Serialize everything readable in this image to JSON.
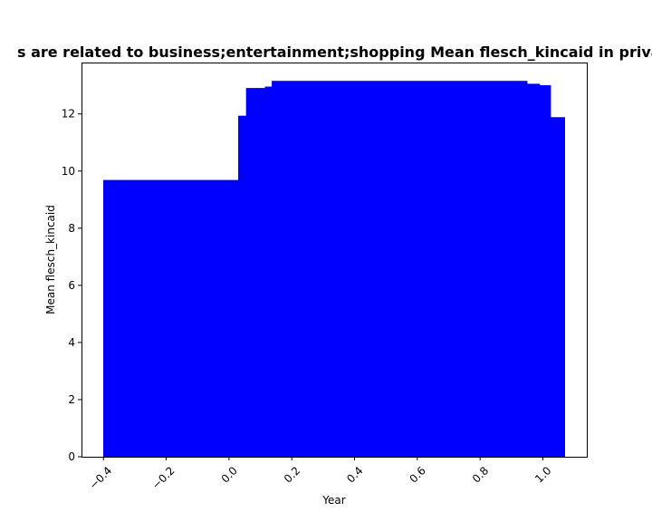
{
  "chart_data": {
    "type": "bar",
    "title": "Mean flesch_kincaid of privacy policies from apps that are related to business;entertainment;shopping Mean flesch_kincaid in privacy policies",
    "title_visible": "s are related to business;entertainment;shopping Mean flesch_kincaid in privac",
    "xlabel": "Year",
    "ylabel": "Mean flesch_kincaid",
    "xlim": [
      -0.47,
      1.14
    ],
    "ylim": [
      0,
      13.8
    ],
    "x_ticks": [
      -0.4,
      -0.2,
      0.0,
      0.2,
      0.4,
      0.6,
      0.8,
      1.0
    ],
    "x_tick_labels": [
      "−0.4",
      "−0.2",
      "0.0",
      "0.2",
      "0.4",
      "0.6",
      "0.8",
      "1.0"
    ],
    "y_ticks": [
      0,
      2,
      4,
      6,
      8,
      10,
      12
    ],
    "y_tick_labels": [
      "0",
      "2",
      "4",
      "6",
      "8",
      "10",
      "12"
    ],
    "bar_color": "#0000ff",
    "grid": false,
    "bars": [
      {
        "x0": -0.4,
        "x1": 0.03,
        "value": 9.68
      },
      {
        "x0": 0.03,
        "x1": 0.055,
        "value": 11.93
      },
      {
        "x0": 0.055,
        "x1": 0.115,
        "value": 12.9
      },
      {
        "x0": 0.115,
        "x1": 0.137,
        "value": 12.95
      },
      {
        "x0": 0.137,
        "x1": 0.95,
        "value": 13.15
      },
      {
        "x0": 0.95,
        "x1": 0.99,
        "value": 13.05
      },
      {
        "x0": 0.99,
        "x1": 1.025,
        "value": 13.0
      },
      {
        "x0": 1.025,
        "x1": 1.07,
        "value": 11.88
      }
    ]
  }
}
